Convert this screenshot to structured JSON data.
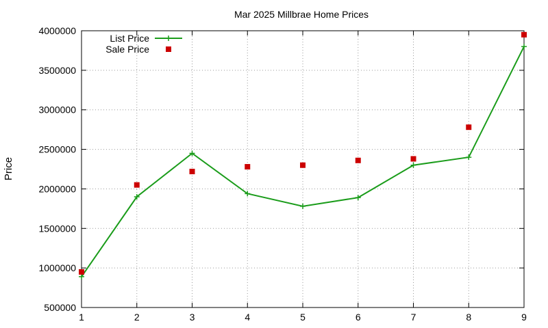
{
  "chart_data": {
    "type": "line",
    "title": "Mar 2025 Millbrae Home Prices",
    "xlabel": "",
    "ylabel": "Price",
    "x": [
      1,
      2,
      3,
      4,
      5,
      6,
      7,
      8,
      9
    ],
    "xlim": [
      1,
      9
    ],
    "ylim": [
      500000,
      4000000
    ],
    "xticks": [
      "1",
      "2",
      "3",
      "4",
      "5",
      "6",
      "7",
      "8",
      "9"
    ],
    "yticks": [
      "500000",
      "1000000",
      "1500000",
      "2000000",
      "2500000",
      "3000000",
      "3500000",
      "4000000"
    ],
    "grid": true,
    "legend_position": "top-left",
    "series": [
      {
        "name": "List Price",
        "style": "line-with-plus-markers",
        "color": "#1a9c1a",
        "values": [
          890000,
          1900000,
          2450000,
          1940000,
          1780000,
          1890000,
          2300000,
          2400000,
          3800000
        ]
      },
      {
        "name": "Sale Price",
        "style": "square-points",
        "color": "#cc0000",
        "values": [
          950000,
          2050000,
          2220000,
          2280000,
          2300000,
          2360000,
          2380000,
          2780000,
          3950000
        ]
      }
    ]
  }
}
